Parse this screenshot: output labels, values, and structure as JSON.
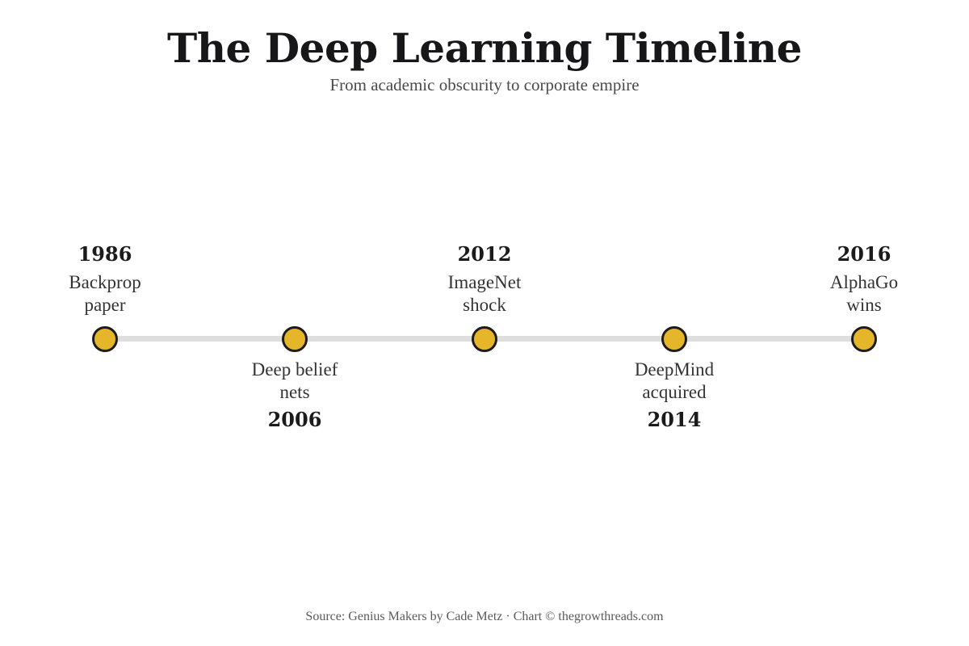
{
  "title": "The Deep Learning Timeline",
  "subtitle": "From academic obscurity to corporate empire",
  "events": [
    {
      "year": "1986",
      "label_lines": [
        "Backprop",
        "paper"
      ],
      "placement": "above"
    },
    {
      "year": "2006",
      "label_lines": [
        "Deep belief",
        "nets"
      ],
      "placement": "below"
    },
    {
      "year": "2012",
      "label_lines": [
        "ImageNet",
        "shock"
      ],
      "placement": "above"
    },
    {
      "year": "2014",
      "label_lines": [
        "DeepMind",
        "acquired"
      ],
      "placement": "below"
    },
    {
      "year": "2016",
      "label_lines": [
        "AlphaGo",
        "wins"
      ],
      "placement": "above"
    }
  ],
  "source": "Source: Genius Makers by Cade Metz · Chart © thegrowthreads.com",
  "colors": {
    "marker_fill": "#e6b62a",
    "marker_stroke": "#1c1c1c",
    "track": "#dedede"
  }
}
